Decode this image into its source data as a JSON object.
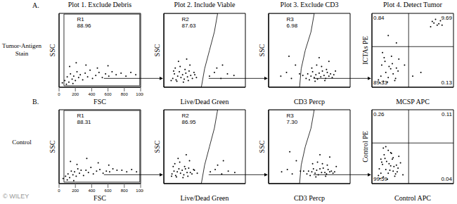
{
  "column_titles": [
    "Plot 1.  Exclude Debris",
    "Plot 2.  Include Viable",
    "Plot 3.  Exclude CD3",
    "Plot 4.  Detect Tumor"
  ],
  "rows": [
    {
      "letter": "A.",
      "label": "Tumor-Antigen Stain"
    },
    {
      "letter": "B.",
      "label": "Control"
    }
  ],
  "watermark": "© WILEY",
  "chart_data": [
    {
      "type": "scatter",
      "x_label": "FSC",
      "y_label": "SSC",
      "xlim": [
        0,
        1000
      ],
      "ylim": [
        0,
        1000
      ],
      "xticks": [
        0,
        200,
        400,
        600,
        800,
        1000
      ],
      "tick_labels": "x",
      "color": "#000000",
      "marker": "dot",
      "x": [
        40,
        70,
        100,
        120,
        140,
        160,
        180,
        200,
        220,
        240,
        260,
        290,
        320,
        350,
        380,
        410,
        450,
        490,
        530,
        570,
        610,
        650,
        700,
        760,
        820,
        880,
        940,
        130,
        210,
        330,
        470,
        600,
        90,
        170
      ],
      "y": [
        60,
        90,
        140,
        70,
        180,
        110,
        150,
        90,
        210,
        130,
        170,
        100,
        190,
        140,
        230,
        120,
        160,
        200,
        130,
        180,
        150,
        210,
        170,
        190,
        150,
        200,
        170,
        280,
        330,
        300,
        260,
        290,
        40,
        50
      ],
      "gate": {
        "name": "R1",
        "value": 88.96,
        "x": [
          60,
          990,
          990,
          60,
          60
        ],
        "y": [
          20,
          20,
          990,
          990,
          20
        ]
      }
    },
    {
      "type": "scatter",
      "x_label": "Live/Dead Green",
      "y_label": "SSC",
      "xlim": [
        0,
        1000
      ],
      "ylim": [
        0,
        1000
      ],
      "tick_labels": false,
      "color": "#000000",
      "marker": "dot",
      "x": [
        110,
        130,
        150,
        170,
        190,
        210,
        230,
        250,
        270,
        290,
        310,
        330,
        350,
        370,
        140,
        200,
        260,
        320,
        380,
        160,
        240,
        300,
        180,
        280,
        560,
        620,
        700,
        780,
        860,
        650,
        720,
        90,
        120,
        400
      ],
      "y": [
        120,
        180,
        100,
        150,
        210,
        130,
        170,
        110,
        190,
        140,
        220,
        160,
        120,
        200,
        260,
        280,
        240,
        300,
        170,
        80,
        70,
        90,
        350,
        380,
        150,
        200,
        120,
        180,
        160,
        260,
        300,
        90,
        220,
        130
      ],
      "gate": {
        "name": "R2",
        "value": 87.63,
        "x": [
          0,
          460,
          500,
          560,
          620,
          660,
          0,
          0
        ],
        "y": [
          0,
          0,
          250,
          500,
          750,
          1000,
          1000,
          0
        ]
      }
    },
    {
      "type": "scatter",
      "x_label": "CD3 Percp",
      "y_label": "SSC",
      "xlim": [
        0,
        1000
      ],
      "ylim": [
        0,
        1000
      ],
      "tick_labels": false,
      "color": "#000000",
      "marker": "dot",
      "x": [
        460,
        480,
        500,
        520,
        540,
        560,
        580,
        600,
        620,
        640,
        660,
        680,
        700,
        720,
        740,
        760,
        780,
        800,
        530,
        590,
        650,
        710,
        570,
        690,
        150,
        220,
        280,
        330,
        380,
        250,
        420,
        620,
        740,
        820
      ],
      "y": [
        120,
        180,
        100,
        150,
        210,
        130,
        170,
        110,
        190,
        140,
        220,
        160,
        120,
        200,
        150,
        180,
        130,
        170,
        260,
        300,
        280,
        240,
        80,
        90,
        150,
        200,
        120,
        300,
        180,
        420,
        160,
        400,
        350,
        220
      ],
      "gate": {
        "name": "R3",
        "value": 6.98,
        "x": [
          0,
          380,
          400,
          450,
          520,
          560,
          0,
          0
        ],
        "y": [
          0,
          0,
          250,
          500,
          750,
          1000,
          1000,
          0
        ]
      }
    },
    {
      "type": "scatter",
      "x_label": "MCSP APC",
      "y_label": "ICTAs PE",
      "xlim": [
        0,
        1000
      ],
      "ylim": [
        0,
        1000
      ],
      "tick_labels": false,
      "color": "#000000",
      "marker": "dot",
      "x": [
        80,
        110,
        140,
        170,
        200,
        230,
        260,
        290,
        320,
        120,
        160,
        210,
        250,
        300,
        100,
        190,
        280,
        150,
        240,
        330,
        720,
        760,
        800,
        840,
        780,
        820,
        740,
        860,
        200,
        600,
        300,
        500,
        400,
        130
      ],
      "y": [
        100,
        150,
        80,
        200,
        130,
        250,
        180,
        120,
        220,
        300,
        350,
        280,
        320,
        260,
        60,
        70,
        90,
        400,
        420,
        380,
        820,
        870,
        840,
        900,
        920,
        860,
        890,
        840,
        700,
        200,
        600,
        150,
        300,
        470
      ],
      "quadrants": {
        "x": 450,
        "y": 550,
        "upper_left": 0.84,
        "upper_right": 9.69,
        "lower_left": 89.33,
        "lower_right": 0.13
      }
    },
    {
      "type": "scatter",
      "x_label": "FSC",
      "y_label": "SSC",
      "xlim": [
        0,
        1000
      ],
      "ylim": [
        0,
        1000
      ],
      "xticks": [
        0,
        200,
        400,
        600,
        800,
        1000
      ],
      "tick_labels": "x",
      "color": "#000000",
      "marker": "dot",
      "x": [
        50,
        80,
        110,
        130,
        150,
        170,
        190,
        210,
        230,
        250,
        270,
        300,
        330,
        360,
        390,
        420,
        460,
        500,
        540,
        580,
        620,
        660,
        710,
        770,
        830,
        890,
        950,
        140,
        220,
        340,
        480,
        610,
        100,
        180
      ],
      "y": [
        70,
        100,
        130,
        80,
        170,
        120,
        160,
        100,
        200,
        140,
        180,
        110,
        180,
        150,
        220,
        130,
        170,
        190,
        140,
        170,
        160,
        200,
        180,
        180,
        160,
        190,
        160,
        300,
        260,
        340,
        280,
        250,
        50,
        40
      ],
      "gate": {
        "name": "R1",
        "value": 88.31,
        "x": [
          60,
          990,
          990,
          60,
          60
        ],
        "y": [
          20,
          20,
          990,
          990,
          20
        ]
      }
    },
    {
      "type": "scatter",
      "x_label": "Live/Dead Green",
      "y_label": "SSC",
      "xlim": [
        0,
        1000
      ],
      "ylim": [
        0,
        1000
      ],
      "tick_labels": false,
      "color": "#000000",
      "marker": "dot",
      "x": [
        100,
        125,
        145,
        165,
        185,
        205,
        225,
        245,
        265,
        285,
        305,
        325,
        345,
        365,
        135,
        195,
        255,
        315,
        375,
        155,
        235,
        295,
        175,
        275,
        570,
        630,
        710,
        790,
        870,
        660,
        730,
        95,
        115,
        410
      ],
      "y": [
        130,
        170,
        110,
        160,
        200,
        140,
        180,
        120,
        200,
        150,
        210,
        150,
        130,
        190,
        270,
        290,
        230,
        310,
        180,
        90,
        80,
        100,
        340,
        390,
        160,
        190,
        130,
        170,
        150,
        250,
        310,
        100,
        230,
        140
      ],
      "gate": {
        "name": "R2",
        "value": 86.95,
        "x": [
          0,
          460,
          500,
          560,
          620,
          660,
          0,
          0
        ],
        "y": [
          0,
          0,
          250,
          500,
          750,
          1000,
          1000,
          0
        ]
      }
    },
    {
      "type": "scatter",
      "x_label": "CD3 Percp",
      "y_label": "SSC",
      "xlim": [
        0,
        1000
      ],
      "ylim": [
        0,
        1000
      ],
      "tick_labels": false,
      "color": "#000000",
      "marker": "dot",
      "x": [
        470,
        490,
        510,
        530,
        550,
        570,
        590,
        610,
        630,
        650,
        670,
        690,
        710,
        730,
        750,
        770,
        790,
        810,
        540,
        600,
        660,
        720,
        580,
        700,
        160,
        230,
        290,
        340,
        390,
        260,
        430,
        630,
        750,
        830
      ],
      "y": [
        130,
        170,
        110,
        160,
        200,
        140,
        180,
        120,
        200,
        150,
        210,
        150,
        130,
        190,
        160,
        170,
        140,
        160,
        270,
        290,
        270,
        250,
        90,
        100,
        160,
        190,
        130,
        310,
        170,
        430,
        170,
        390,
        360,
        230
      ],
      "gate": {
        "name": "R3",
        "value": 7.3,
        "value_label": "7.30",
        "x": [
          0,
          380,
          400,
          450,
          520,
          560,
          0,
          0
        ],
        "y": [
          0,
          0,
          250,
          500,
          750,
          1000,
          1000,
          0
        ]
      }
    },
    {
      "type": "scatter",
      "x_label": "Control APC",
      "y_label": "Control PE",
      "xlim": [
        0,
        1000
      ],
      "ylim": [
        0,
        1000
      ],
      "tick_labels": false,
      "color": "#000000",
      "marker": "dot",
      "x": [
        80,
        110,
        140,
        170,
        200,
        230,
        260,
        290,
        320,
        120,
        160,
        210,
        250,
        300,
        100,
        190,
        280,
        150,
        240,
        330,
        90,
        130,
        180,
        220,
        270,
        310,
        350,
        200,
        140,
        260,
        380,
        170,
        110,
        230
      ],
      "y": [
        110,
        140,
        90,
        190,
        140,
        240,
        170,
        130,
        210,
        290,
        340,
        270,
        330,
        250,
        70,
        60,
        100,
        390,
        410,
        370,
        200,
        260,
        300,
        180,
        230,
        160,
        280,
        450,
        480,
        350,
        120,
        500,
        330,
        420
      ],
      "quadrants": {
        "x": 450,
        "y": 550,
        "upper_left": 0.26,
        "upper_right": 0.11,
        "lower_left": 99.59,
        "lower_right": 0.04
      }
    }
  ]
}
